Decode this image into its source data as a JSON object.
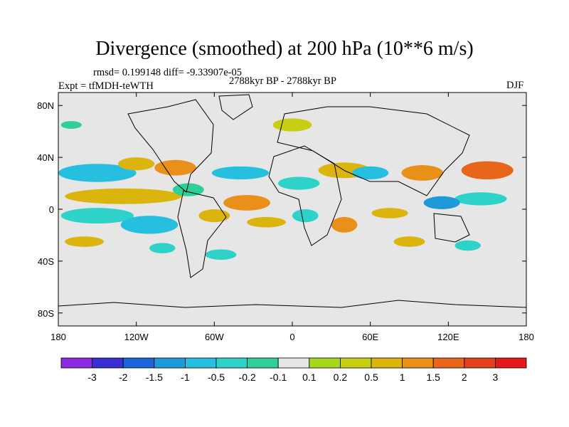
{
  "chart_data": {
    "type": "heatmap",
    "title": "Divergence (smoothed) at 200 hPa (10**6 m/s)",
    "stats_line": "rmsd= 0.199148  diff= -9.33907e-05",
    "experiment_line": "Expt = tfMDH-teWTH",
    "period_line": "2788kyr BP - 2788kyr BP",
    "season": "DJF",
    "xlim": [
      -180,
      180
    ],
    "ylim": [
      -90,
      90
    ],
    "x_ticks": [
      {
        "value": -180,
        "label": "180"
      },
      {
        "value": -120,
        "label": "120W"
      },
      {
        "value": -60,
        "label": "60W"
      },
      {
        "value": 0,
        "label": "0"
      },
      {
        "value": 60,
        "label": "60E"
      },
      {
        "value": 120,
        "label": "120E"
      },
      {
        "value": 180,
        "label": "180"
      }
    ],
    "y_ticks": [
      {
        "value": 80,
        "label": "80N"
      },
      {
        "value": 40,
        "label": "40N"
      },
      {
        "value": 0,
        "label": "0"
      },
      {
        "value": -40,
        "label": "40S"
      },
      {
        "value": -80,
        "label": "80S"
      }
    ],
    "colorbar": {
      "levels": [
        "-3",
        "-2",
        "-1.5",
        "-1",
        "-0.5",
        "-0.2",
        "-0.1",
        "0.1",
        "0.2",
        "0.5",
        "1",
        "1.5",
        "2",
        "3"
      ],
      "colors": [
        "#8a2be2",
        "#3a2fd0",
        "#1e64d8",
        "#1e9ad8",
        "#27bfe0",
        "#2ed2c8",
        "#2ecf9a",
        "#e6e6e6",
        "#a6d81e",
        "#c6cf12",
        "#dcb40e",
        "#e9901a",
        "#e8651c",
        "#e23f1d",
        "#e41a1a"
      ]
    },
    "fields": [
      {
        "lon": -150,
        "lat": 28,
        "rlon": 30,
        "rlat": 7,
        "value": -1.0
      },
      {
        "lon": -120,
        "lat": 35,
        "rlon": 14,
        "rlat": 5,
        "value": 0.5
      },
      {
        "lon": -90,
        "lat": 32,
        "rlon": 16,
        "rlat": 6,
        "value": 1.0
      },
      {
        "lon": -130,
        "lat": 10,
        "rlon": 45,
        "rlat": 6,
        "value": 0.5
      },
      {
        "lon": -150,
        "lat": -5,
        "rlon": 28,
        "rlat": 6,
        "value": -0.5
      },
      {
        "lon": -110,
        "lat": -12,
        "rlon": 22,
        "rlat": 7,
        "value": -1.0
      },
      {
        "lon": -80,
        "lat": 15,
        "rlon": 12,
        "rlat": 5,
        "value": -0.2
      },
      {
        "lon": -40,
        "lat": 28,
        "rlon": 22,
        "rlat": 5,
        "value": -1.0
      },
      {
        "lon": -35,
        "lat": 5,
        "rlon": 18,
        "rlat": 6,
        "value": 1.0
      },
      {
        "lon": -60,
        "lat": -5,
        "rlon": 12,
        "rlat": 5,
        "value": 0.5
      },
      {
        "lon": -20,
        "lat": -10,
        "rlon": 15,
        "rlat": 4,
        "value": 0.5
      },
      {
        "lon": 5,
        "lat": 20,
        "rlon": 16,
        "rlat": 5,
        "value": -0.5
      },
      {
        "lon": 40,
        "lat": 30,
        "rlon": 20,
        "rlat": 6,
        "value": 0.5
      },
      {
        "lon": 60,
        "lat": 28,
        "rlon": 14,
        "rlat": 5,
        "value": -1.0
      },
      {
        "lon": 100,
        "lat": 28,
        "rlon": 16,
        "rlat": 6,
        "value": 1.0
      },
      {
        "lon": 150,
        "lat": 30,
        "rlon": 20,
        "rlat": 7,
        "value": 1.5
      },
      {
        "lon": 145,
        "lat": 8,
        "rlon": 20,
        "rlat": 5,
        "value": -0.5
      },
      {
        "lon": 115,
        "lat": 5,
        "rlon": 14,
        "rlat": 5,
        "value": -1.5
      },
      {
        "lon": 75,
        "lat": -3,
        "rlon": 14,
        "rlat": 4,
        "value": 0.5
      },
      {
        "lon": 40,
        "lat": -12,
        "rlon": 10,
        "rlat": 6,
        "value": 1.0
      },
      {
        "lon": 10,
        "lat": -5,
        "rlon": 10,
        "rlat": 5,
        "value": -0.5
      },
      {
        "lon": -100,
        "lat": -30,
        "rlon": 10,
        "rlat": 4,
        "value": -0.5
      },
      {
        "lon": -55,
        "lat": -35,
        "rlon": 12,
        "rlat": 4,
        "value": -0.5
      },
      {
        "lon": 90,
        "lat": -25,
        "rlon": 12,
        "rlat": 4,
        "value": 0.5
      },
      {
        "lon": 135,
        "lat": -28,
        "rlon": 10,
        "rlat": 4,
        "value": -0.5
      },
      {
        "lon": -160,
        "lat": -25,
        "rlon": 15,
        "rlat": 4,
        "value": 0.5
      },
      {
        "lon": 0,
        "lat": 65,
        "rlon": 15,
        "rlat": 5,
        "value": 0.2
      },
      {
        "lon": -170,
        "lat": 65,
        "rlon": 8,
        "rlat": 3,
        "value": -0.2
      }
    ]
  }
}
